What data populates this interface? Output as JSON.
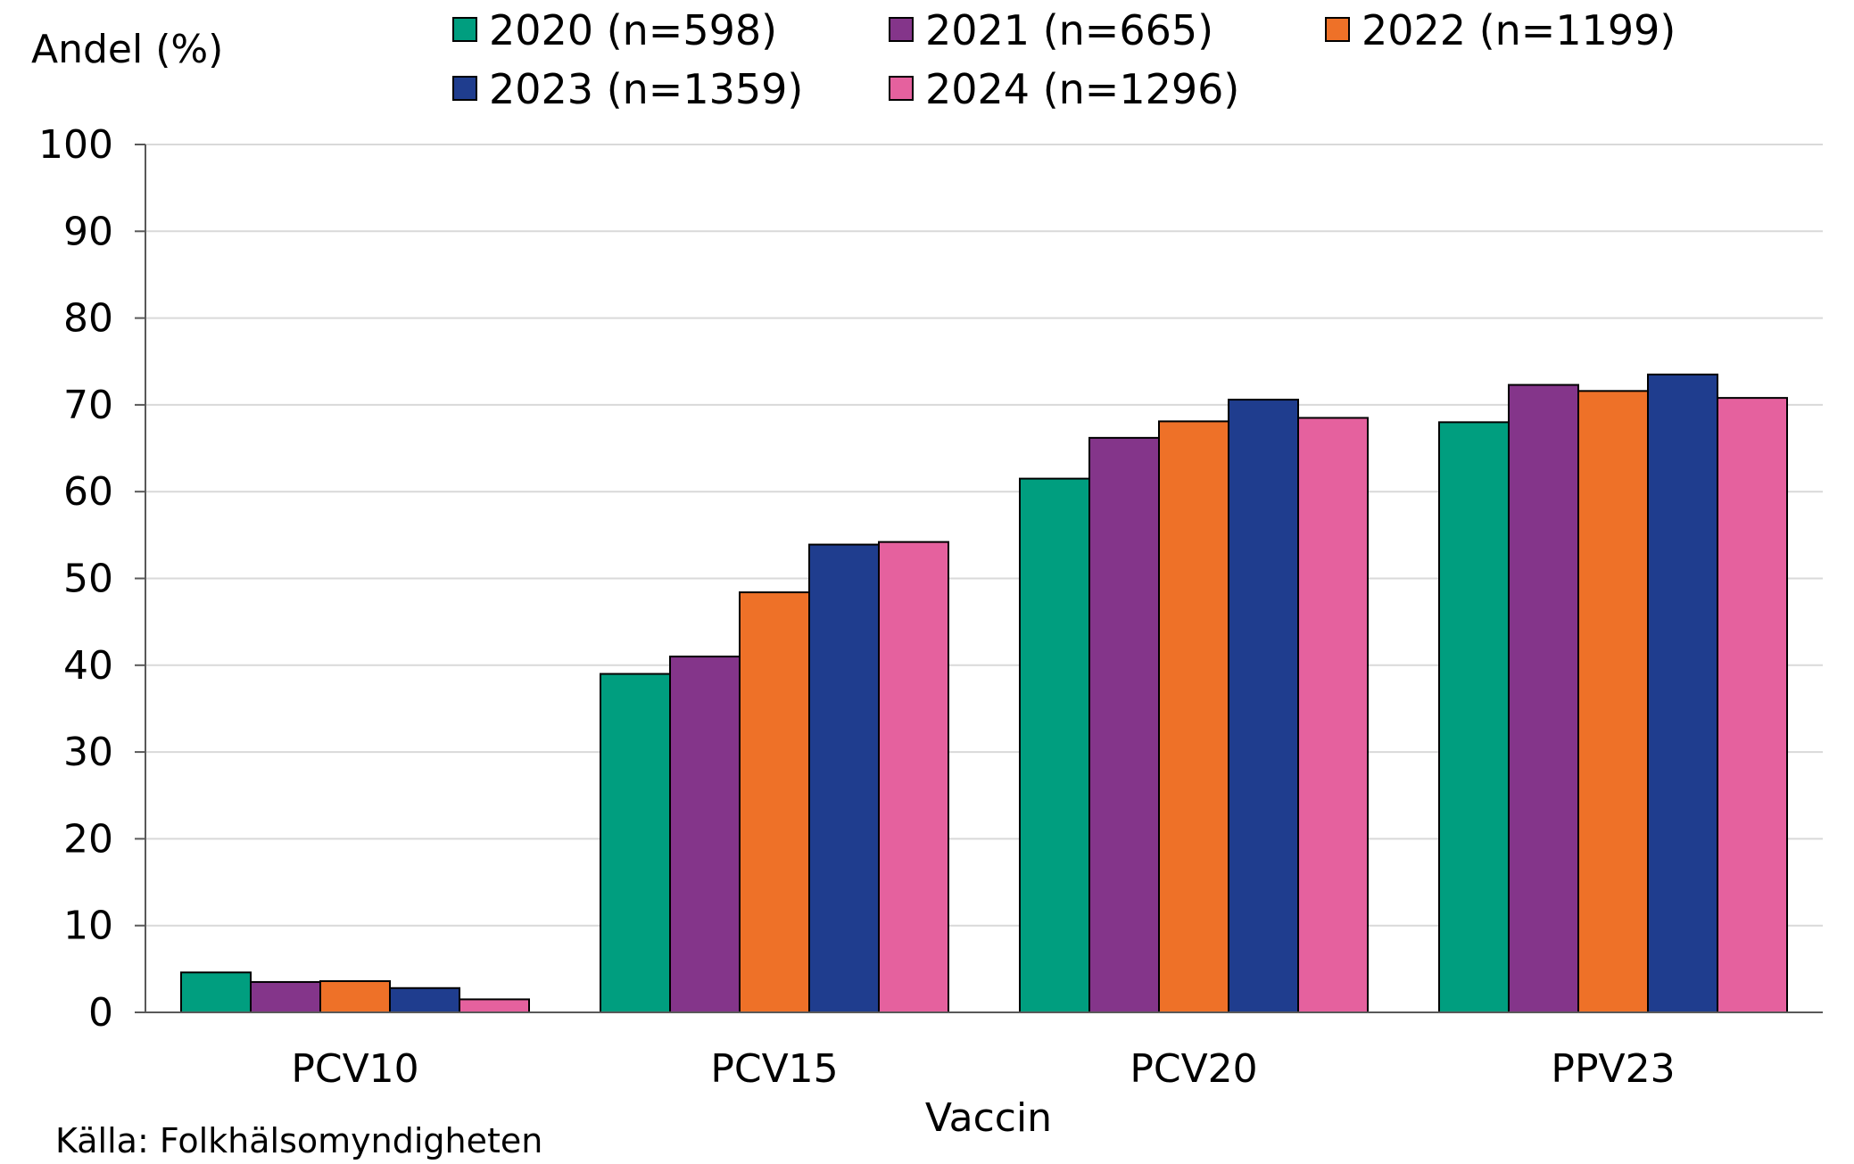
{
  "chart_data": {
    "type": "bar",
    "title": "",
    "ylabel": "Andel (%)",
    "xlabel": "Vaccin",
    "ylim": [
      0,
      100
    ],
    "yticks": [
      0,
      10,
      20,
      30,
      40,
      50,
      60,
      70,
      80,
      90,
      100
    ],
    "grid": true,
    "legend_position": "top",
    "categories": [
      "PCV10",
      "PCV15",
      "PCV20",
      "PPV23"
    ],
    "series": [
      {
        "name": "2020 (n=598)",
        "color": "#009E7F",
        "values": [
          4.6,
          39.0,
          61.5,
          68.0
        ]
      },
      {
        "name": "2021 (n=665)",
        "color": "#84358A",
        "values": [
          3.5,
          41.0,
          66.2,
          72.3
        ]
      },
      {
        "name": "2022 (n=1199)",
        "color": "#EE7128",
        "values": [
          3.6,
          48.4,
          68.1,
          71.6
        ]
      },
      {
        "name": "2023 (n=1359)",
        "color": "#1F3D8E",
        "values": [
          2.8,
          53.9,
          70.6,
          73.5
        ]
      },
      {
        "name": "2024 (n=1296)",
        "color": "#E5619E",
        "values": [
          1.5,
          54.2,
          68.5,
          70.8
        ]
      }
    ],
    "source": "Källa: Folkhälsomyndigheten"
  }
}
